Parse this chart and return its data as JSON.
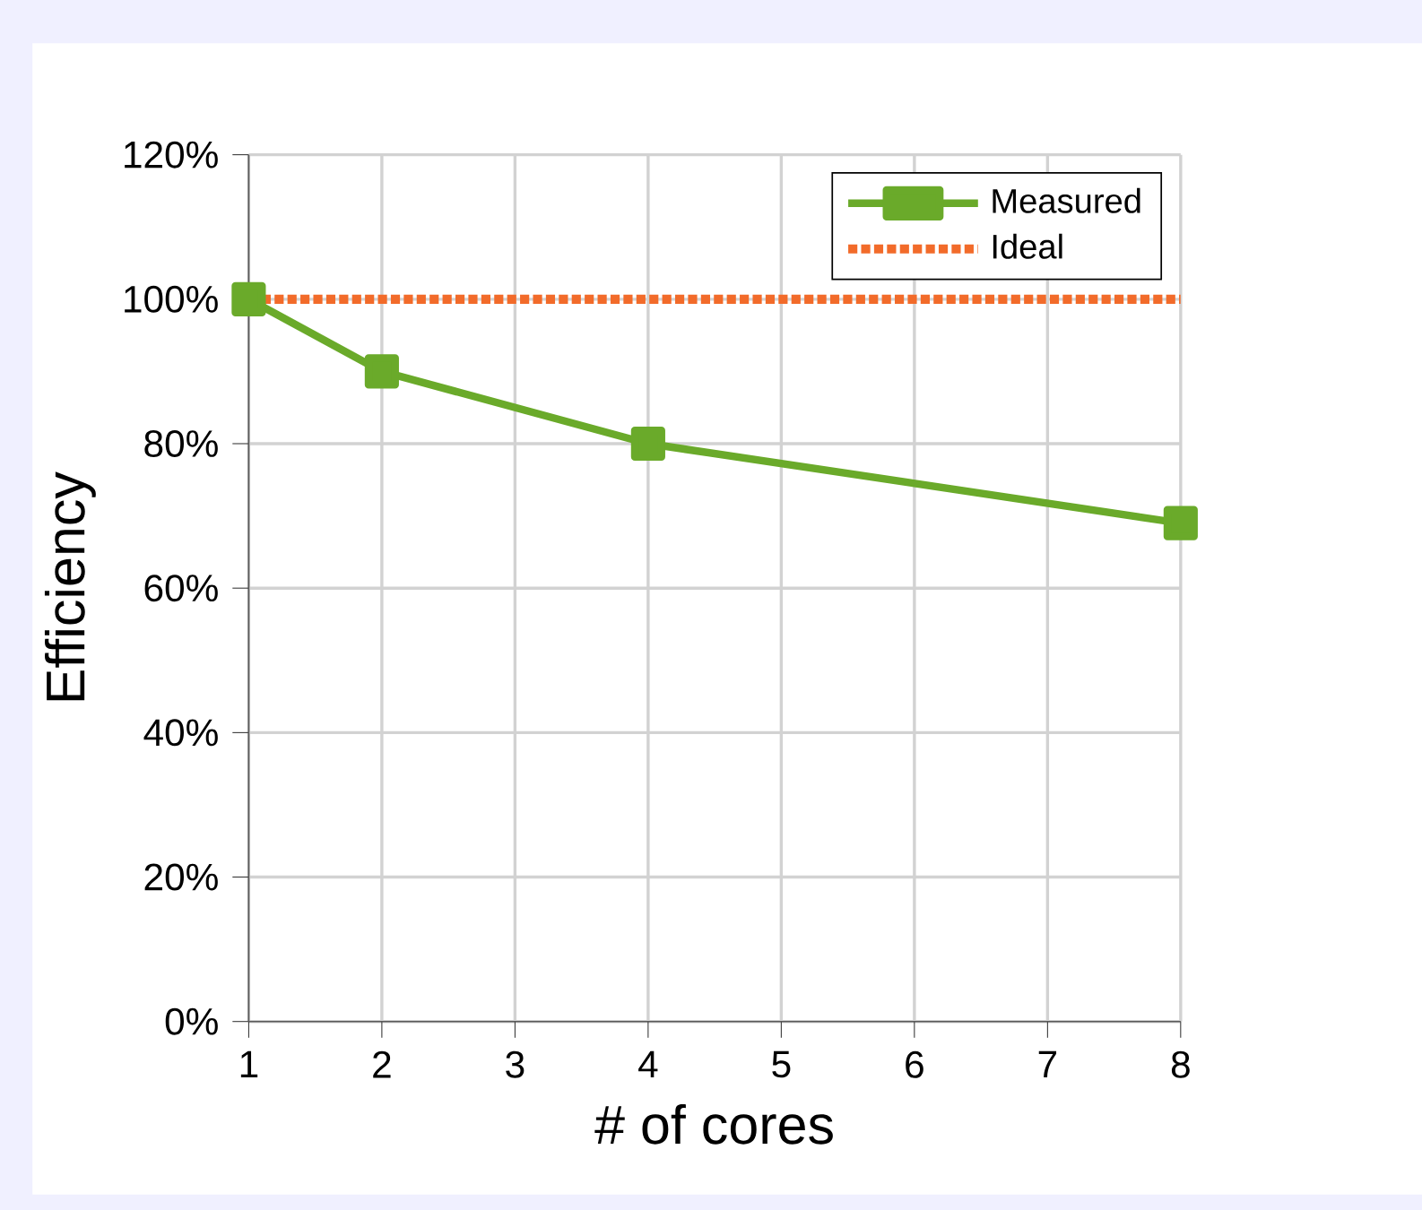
{
  "chart_data": {
    "type": "line",
    "xlabel": "# of cores",
    "ylabel": "Efficiency",
    "x": [
      1,
      2,
      4,
      8
    ],
    "series": [
      {
        "name": "Measured",
        "color": "#6aaa2a",
        "values": [
          100,
          90,
          80,
          69
        ],
        "marker": "square",
        "line_style": "solid"
      },
      {
        "name": "Ideal",
        "color": "#f26b2a",
        "x": [
          1,
          8
        ],
        "values": [
          100,
          100
        ],
        "marker": "none",
        "line_style": "dotted"
      }
    ],
    "xlim": [
      1,
      8
    ],
    "xticks": [
      1,
      2,
      3,
      4,
      5,
      6,
      7,
      8
    ],
    "ylim": [
      0,
      120
    ],
    "yticks": [
      {
        "value": 0,
        "label": "0%"
      },
      {
        "value": 20,
        "label": "20%"
      },
      {
        "value": 40,
        "label": "40%"
      },
      {
        "value": 60,
        "label": "60%"
      },
      {
        "value": 80,
        "label": "80%"
      },
      {
        "value": 100,
        "label": "100%"
      },
      {
        "value": 120,
        "label": "120%"
      }
    ],
    "grid": true,
    "legend": "top right"
  }
}
